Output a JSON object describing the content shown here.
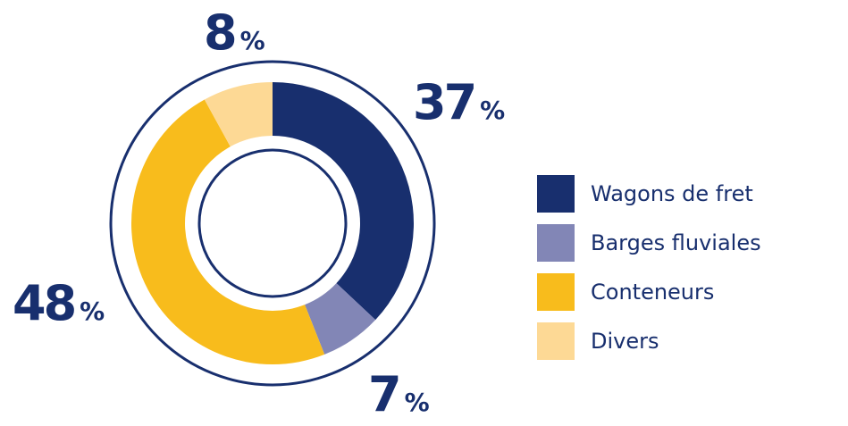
{
  "chart_data": {
    "type": "pie",
    "categories": [
      "Wagons de fret",
      "Barges fluviales",
      "Conteneurs",
      "Divers"
    ],
    "values": [
      37,
      7,
      48,
      8
    ],
    "labels": [
      {
        "value": "37",
        "unit": "%"
      },
      {
        "value": "7",
        "unit": "%"
      },
      {
        "value": "48",
        "unit": "%"
      },
      {
        "value": "8",
        "unit": "%"
      }
    ],
    "colors": [
      "#182f6e",
      "#8286b6",
      "#f8bc1c",
      "#fdd995"
    ],
    "legend_position": "right",
    "title": ""
  }
}
